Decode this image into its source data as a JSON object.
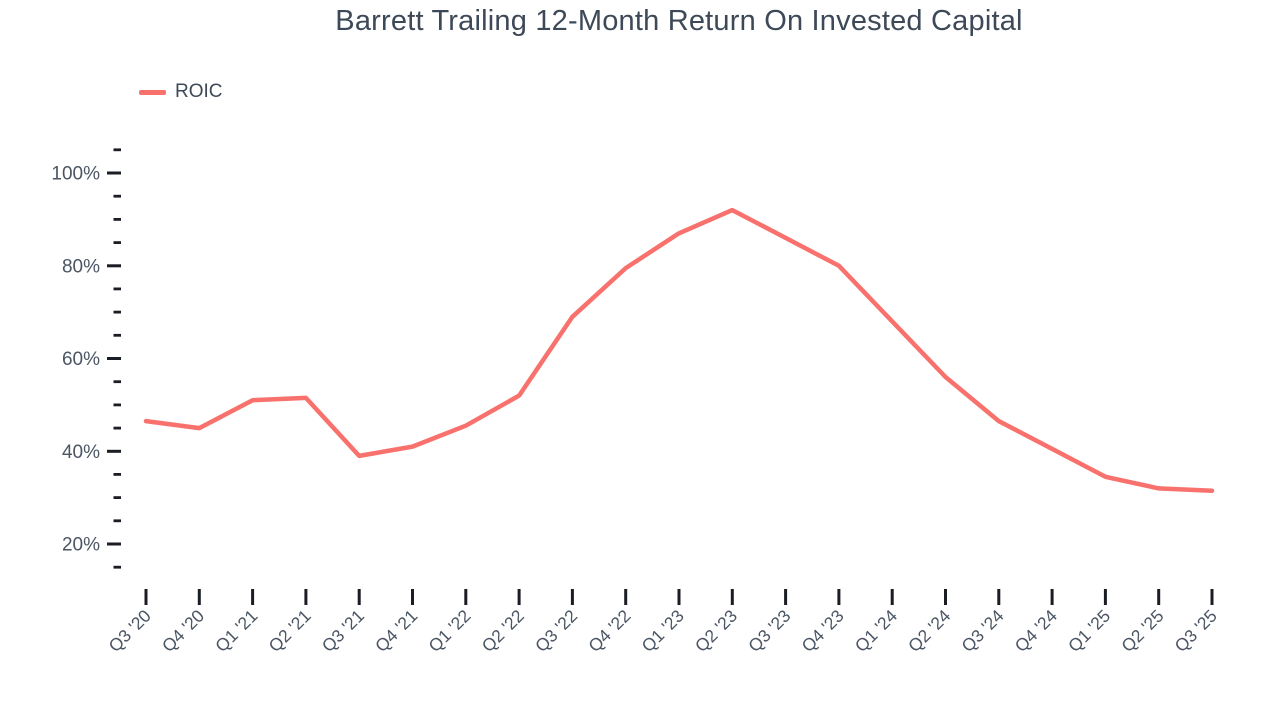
{
  "chart_data": {
    "type": "line",
    "title": "Barrett Trailing 12-Month Return On Invested Capital",
    "categories": [
      "Q3 '20",
      "Q4 '20",
      "Q1 '21",
      "Q2 '21",
      "Q3 '21",
      "Q4 '21",
      "Q1 '22",
      "Q2 '22",
      "Q3 '22",
      "Q4 '22",
      "Q1 '23",
      "Q2 '23",
      "Q3 '23",
      "Q4 '23",
      "Q1 '24",
      "Q2 '24",
      "Q3 '24",
      "Q4 '24",
      "Q1 '25",
      "Q2 '25",
      "Q3 '25"
    ],
    "series": [
      {
        "name": "ROIC",
        "values": [
          46.5,
          45,
          51,
          51.5,
          39,
          41,
          45.5,
          52,
          69,
          79.5,
          87,
          92,
          86,
          80,
          68,
          56,
          46.5,
          40.5,
          34.5,
          32,
          31.5
        ]
      }
    ],
    "xlabel": "",
    "ylabel": "",
    "y_axis": {
      "major_ticks": [
        20,
        40,
        60,
        80,
        100
      ],
      "tick_labels": [
        "20%",
        "40%",
        "60%",
        "80%",
        "100%"
      ],
      "minor_tick_step": 5,
      "range": [
        15,
        105
      ]
    },
    "grid": false,
    "legend_position": "top-left",
    "colors": {
      "line": "#f8716d",
      "tick": "#1a1d24",
      "axis_text": "#4b5563",
      "title_text": "#3e4958",
      "background": "#ffffff"
    }
  }
}
